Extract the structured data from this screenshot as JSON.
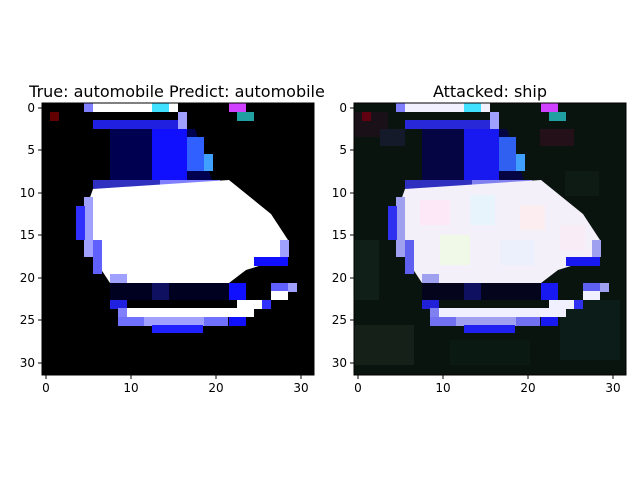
{
  "figure": {
    "panels": [
      {
        "title": "True: automobile  Predict: automobile",
        "image": "car-image",
        "x_ticks": [
          "0",
          "10",
          "20",
          "30"
        ],
        "y_ticks": [
          "0",
          "5",
          "10",
          "15",
          "20",
          "25",
          "30"
        ]
      },
      {
        "title": "Attacked: ship",
        "image": "perturbed-car-image",
        "x_ticks": [
          "0",
          "10",
          "20",
          "30"
        ],
        "y_ticks": [
          "0",
          "5",
          "10",
          "15",
          "20",
          "25",
          "30"
        ]
      }
    ]
  },
  "colors": {
    "background": "#000000",
    "car_body": "#ffffff",
    "outline": "#1010ff",
    "highlight_cyan": "#40e0ff",
    "highlight_magenta": "#d040ff",
    "noise_tint": "#0a1a12"
  }
}
